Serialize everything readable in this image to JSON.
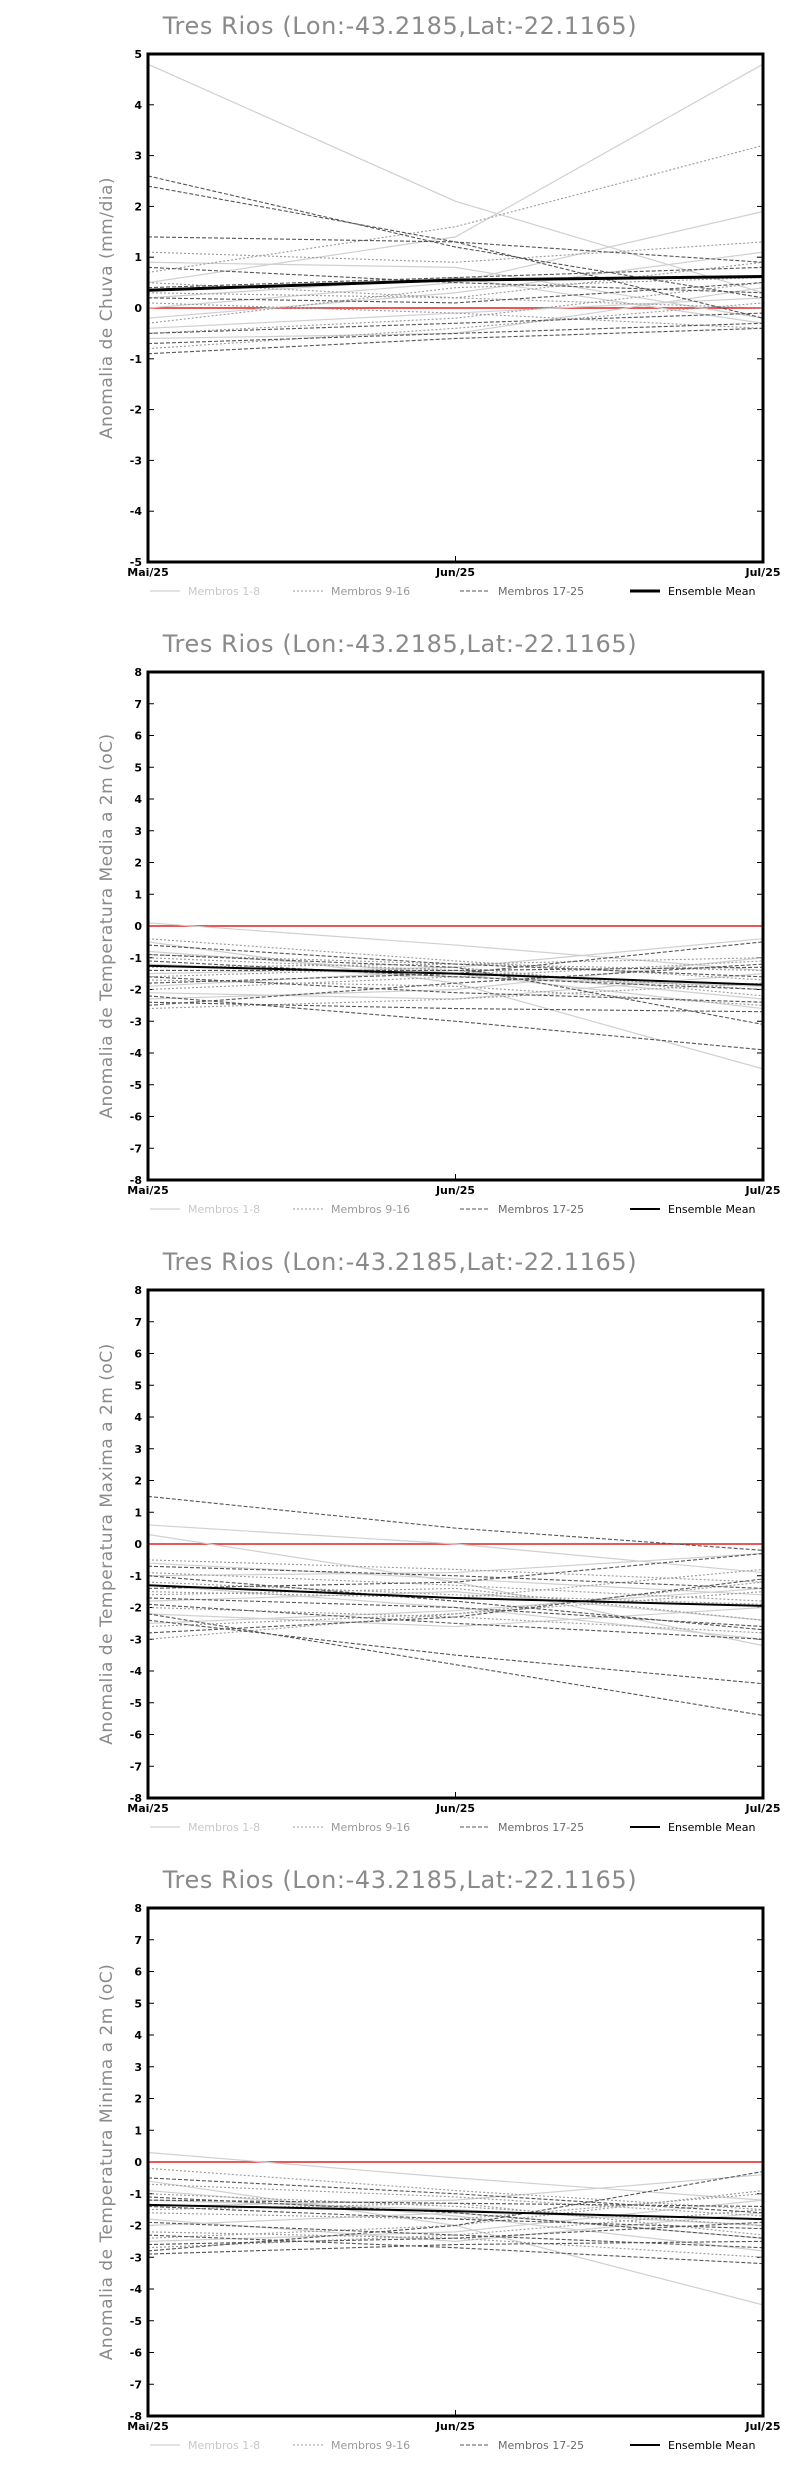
{
  "chart_data": [
    {
      "type": "line",
      "title": "Tres Rios (Lon:-43.2185,Lat:-22.1165)",
      "ylabel": "Anomalia de Chuva (mm/dia)",
      "xlabel": "",
      "categories": [
        "Mai/25",
        "Jun/25",
        "Jul/25"
      ],
      "ylim": [
        -5,
        5
      ],
      "yticks": [
        "5",
        "4",
        "3",
        "2",
        "1",
        "0",
        "-1",
        "-2",
        "-3",
        "-4",
        "-5"
      ],
      "zero_line_color": "#e02020",
      "members_1_8": [
        [
          4.8,
          2.1,
          0.3
        ],
        [
          0.5,
          1.4,
          4.8
        ],
        [
          0.0,
          0.5,
          1.9
        ],
        [
          -0.4,
          -0.1,
          0.2
        ],
        [
          0.2,
          0.6,
          -0.3
        ],
        [
          -0.6,
          -0.5,
          0.4
        ],
        [
          0.9,
          0.8,
          -0.2
        ],
        [
          -0.2,
          0.3,
          1.1
        ]
      ],
      "members_9_16": [
        [
          0.7,
          1.6,
          3.2
        ],
        [
          -0.8,
          -0.4,
          0.1
        ],
        [
          0.3,
          0.2,
          0.9
        ],
        [
          -0.5,
          -0.2,
          0.5
        ],
        [
          1.1,
          0.9,
          1.3
        ],
        [
          0.1,
          -0.1,
          -0.4
        ],
        [
          -0.3,
          0.4,
          0.6
        ],
        [
          0.5,
          0.2,
          0.0
        ]
      ],
      "members_17_25": [
        [
          2.6,
          1.2,
          0.2
        ],
        [
          2.4,
          1.3,
          -0.2
        ],
        [
          1.4,
          1.3,
          0.9
        ],
        [
          0.8,
          0.5,
          0.3
        ],
        [
          -0.5,
          -0.3,
          -0.1
        ],
        [
          -0.7,
          -0.5,
          -0.3
        ],
        [
          0.2,
          0.1,
          0.5
        ],
        [
          0.4,
          0.6,
          0.8
        ],
        [
          -0.9,
          -0.6,
          -0.4
        ]
      ],
      "ensemble_mean": [
        0.35,
        0.55,
        0.62
      ],
      "legend": [
        "Membros 1-8",
        "Membros 9-16",
        "Membros 17-25",
        "Ensemble Mean"
      ],
      "ensemble_bold": true
    },
    {
      "type": "line",
      "title": "Tres Rios (Lon:-43.2185,Lat:-22.1165)",
      "ylabel": "Anomalia de Temperatura Media a 2m (oC)",
      "xlabel": "",
      "categories": [
        "Mai/25",
        "Jun/25",
        "Jul/25"
      ],
      "ylim": [
        -8,
        8
      ],
      "yticks": [
        "8",
        "7",
        "6",
        "5",
        "4",
        "3",
        "2",
        "1",
        "0",
        "-1",
        "-2",
        "-3",
        "-4",
        "-5",
        "-6",
        "-7",
        "-8"
      ],
      "zero_line_color": "#e02020",
      "members_1_8": [
        [
          0.1,
          -0.6,
          -1.4
        ],
        [
          -0.5,
          -1.8,
          -4.5
        ],
        [
          -1.5,
          -1.3,
          -0.4
        ],
        [
          -1.9,
          -1.4,
          -2.3
        ],
        [
          -2.3,
          -2.0,
          -1.0
        ],
        [
          -0.8,
          -1.5,
          -2.6
        ],
        [
          -1.2,
          -1.6,
          -1.9
        ],
        [
          -2.1,
          -2.3,
          -1.5
        ]
      ],
      "members_9_16": [
        [
          -0.9,
          -1.2,
          -1.0
        ],
        [
          -1.6,
          -1.3,
          -2.2
        ],
        [
          -0.4,
          -1.1,
          -1.7
        ],
        [
          -2.6,
          -2.3,
          -1.8
        ],
        [
          -1.3,
          -1.2,
          -1.4
        ],
        [
          -1.7,
          -1.9,
          -2.5
        ],
        [
          -1.0,
          -1.4,
          -2.0
        ],
        [
          -2.0,
          -1.6,
          -1.1
        ]
      ],
      "members_17_25": [
        [
          -2.2,
          -3.0,
          -3.9
        ],
        [
          -1.1,
          -1.6,
          -2.0
        ],
        [
          -0.6,
          -1.2,
          -1.6
        ],
        [
          -1.4,
          -1.4,
          -1.3
        ],
        [
          -2.4,
          -2.6,
          -2.7
        ],
        [
          -1.8,
          -1.5,
          -0.5
        ],
        [
          -0.9,
          -1.3,
          -3.1
        ],
        [
          -2.5,
          -1.8,
          -1.2
        ],
        [
          -1.6,
          -2.1,
          -2.4
        ]
      ],
      "ensemble_mean": [
        -1.25,
        -1.5,
        -1.85
      ],
      "legend": [
        "Membros 1-8",
        "Membros 9-16",
        "Membros 17-25",
        "Ensemble Mean"
      ],
      "ensemble_bold": false
    },
    {
      "type": "line",
      "title": "Tres Rios (Lon:-43.2185,Lat:-22.1165)",
      "ylabel": "Anomalia de Temperatura Maxima a 2m (oC)",
      "xlabel": "",
      "categories": [
        "Mai/25",
        "Jun/25",
        "Jul/25"
      ],
      "ylim": [
        -8,
        8
      ],
      "yticks": [
        "8",
        "7",
        "6",
        "5",
        "4",
        "3",
        "2",
        "1",
        "0",
        "-1",
        "-2",
        "-3",
        "-4",
        "-5",
        "-6",
        "-7",
        "-8"
      ],
      "zero_line_color": "#e02020",
      "members_1_8": [
        [
          0.6,
          0.0,
          -0.9
        ],
        [
          0.3,
          -1.2,
          -3.2
        ],
        [
          -1.0,
          -0.9,
          -0.3
        ],
        [
          -1.8,
          -1.5,
          -2.4
        ],
        [
          -2.5,
          -2.1,
          -1.4
        ],
        [
          -1.3,
          -2.0,
          -3.0
        ],
        [
          -0.6,
          -1.1,
          -1.6
        ],
        [
          -2.2,
          -2.6,
          -2.0
        ]
      ],
      "members_9_16": [
        [
          -0.5,
          -0.8,
          -1.2
        ],
        [
          -1.6,
          -1.4,
          -2.4
        ],
        [
          -3.0,
          -2.2,
          -1.2
        ],
        [
          -1.2,
          -1.6,
          -1.9
        ],
        [
          -2.0,
          -2.3,
          -2.8
        ],
        [
          -0.9,
          -1.3,
          -1.8
        ],
        [
          -1.5,
          -1.7,
          -0.8
        ],
        [
          -2.6,
          -2.2,
          -1.5
        ]
      ],
      "members_17_25": [
        [
          1.5,
          0.5,
          -0.2
        ],
        [
          -2.2,
          -3.8,
          -5.4
        ],
        [
          -2.4,
          -3.5,
          -4.4
        ],
        [
          -0.7,
          -1.0,
          -1.4
        ],
        [
          -1.9,
          -2.5,
          -3.0
        ],
        [
          -1.0,
          -1.8,
          -2.7
        ],
        [
          -2.8,
          -2.3,
          -1.1
        ],
        [
          -1.4,
          -1.2,
          -0.3
        ],
        [
          -1.7,
          -2.0,
          -2.6
        ]
      ],
      "ensemble_mean": [
        -1.3,
        -1.7,
        -1.95
      ],
      "legend": [
        "Membros 1-8",
        "Membros 9-16",
        "Membros 17-25",
        "Ensemble Mean"
      ],
      "ensemble_bold": false
    },
    {
      "type": "line",
      "title": "Tres Rios (Lon:-43.2185,Lat:-22.1165)",
      "ylabel": "Anomalia de Temperatura Minima a 2m (oC)",
      "xlabel": "",
      "categories": [
        "Mai/25",
        "Jun/25",
        "Jul/25"
      ],
      "ylim": [
        -8,
        8
      ],
      "yticks": [
        "8",
        "7",
        "6",
        "5",
        "4",
        "3",
        "2",
        "1",
        "0",
        "-1",
        "-2",
        "-3",
        "-4",
        "-5",
        "-6",
        "-7",
        "-8"
      ],
      "zero_line_color": "#e02020",
      "members_1_8": [
        [
          0.3,
          -0.5,
          -1.2
        ],
        [
          -0.6,
          -2.0,
          -4.5
        ],
        [
          -1.4,
          -1.2,
          -0.4
        ],
        [
          -2.0,
          -1.6,
          -2.4
        ],
        [
          -2.5,
          -2.2,
          -1.2
        ],
        [
          -0.9,
          -1.7,
          -2.8
        ],
        [
          -1.2,
          -1.5,
          -2.0
        ],
        [
          -1.8,
          -2.5,
          -1.6
        ]
      ],
      "members_9_16": [
        [
          -0.2,
          -0.9,
          -1.5
        ],
        [
          -1.5,
          -1.3,
          -2.3
        ],
        [
          -2.4,
          -2.0,
          -0.9
        ],
        [
          -1.0,
          -1.4,
          -2.0
        ],
        [
          -2.2,
          -2.4,
          -3.0
        ],
        [
          -0.7,
          -1.1,
          -1.7
        ],
        [
          -1.6,
          -1.8,
          -1.0
        ],
        [
          -2.7,
          -2.3,
          -1.5
        ]
      ],
      "members_17_25": [
        [
          -2.8,
          -2.0,
          -0.3
        ],
        [
          -2.3,
          -2.7,
          -3.2
        ],
        [
          -0.5,
          -1.0,
          -1.6
        ],
        [
          -1.2,
          -1.3,
          -1.4
        ],
        [
          -2.6,
          -2.4,
          -1.9
        ],
        [
          -1.9,
          -2.3,
          -2.7
        ],
        [
          -1.1,
          -1.6,
          -2.4
        ],
        [
          -2.9,
          -2.6,
          -2.5
        ],
        [
          -1.4,
          -1.8,
          -2.1
        ]
      ],
      "ensemble_mean": [
        -1.35,
        -1.55,
        -1.8
      ],
      "legend": [
        "Membros 1-8",
        "Membros 9-16",
        "Membros 17-25",
        "Ensemble Mean"
      ],
      "ensemble_bold": false
    }
  ],
  "colors": {
    "members_1_8": "#d0d0d0",
    "members_9_16": "#9a9a9a",
    "members_17_25": "#555555",
    "ensemble_mean": "#000000",
    "legend_text_1_8": "#c8c8c8",
    "legend_text_9_16": "#9a9a9a",
    "legend_text_17_25": "#6a6a6a",
    "legend_text_mean": "#000000"
  }
}
